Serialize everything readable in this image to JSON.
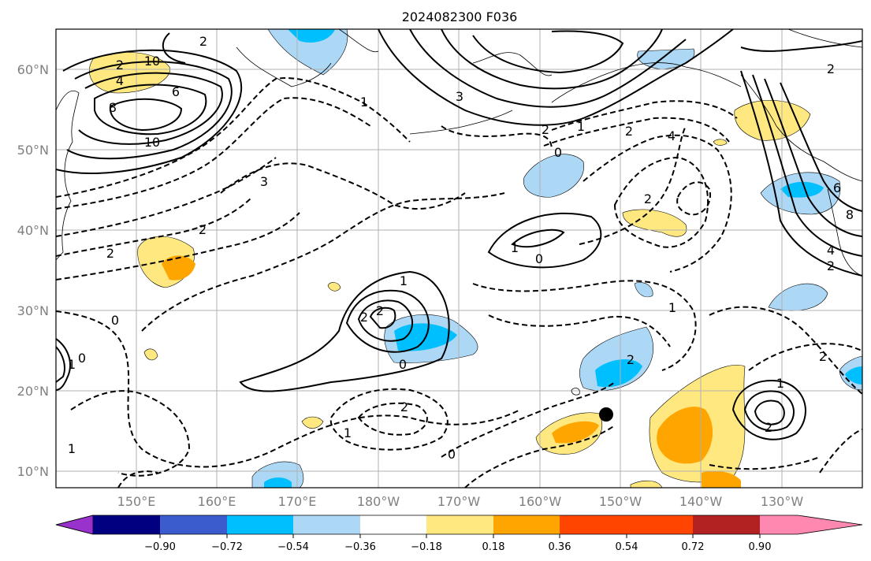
{
  "title": "2024082300 F036",
  "map": {
    "lat_labels": [
      "60°N",
      "50°N",
      "40°N",
      "30°N",
      "20°N",
      "10°N"
    ],
    "lon_labels": [
      "150°E",
      "160°E",
      "170°E",
      "180°W",
      "170°W",
      "160°W",
      "150°W",
      "140°W",
      "130°W"
    ],
    "contour_labels": [
      "2",
      "2",
      "4",
      "6",
      "8",
      "10",
      "10",
      "3",
      "2",
      "2",
      "3",
      "1",
      "2",
      "0",
      "1",
      "2",
      "4",
      "1",
      "2",
      "1",
      "0",
      "0",
      "2",
      "2",
      "2",
      "0",
      "1",
      "0",
      "0",
      "2",
      "1",
      "1",
      "1",
      "2",
      "1",
      "2",
      "6",
      "8",
      "2",
      "2",
      "4"
    ],
    "marker": "black-dot"
  },
  "colorbar": {
    "tick_labels": [
      "−0.90",
      "−0.72",
      "−0.54",
      "−0.36",
      "−0.18",
      "0.18",
      "0.36",
      "0.54",
      "0.72",
      "0.90"
    ],
    "colors": [
      "#9932cc",
      "#000080",
      "#3a5ccc",
      "#00bfff",
      "#add8f5",
      "#ffffff",
      "#ffe880",
      "#ffa500",
      "#ff4500",
      "#b22222",
      "#ff88b0"
    ]
  }
}
